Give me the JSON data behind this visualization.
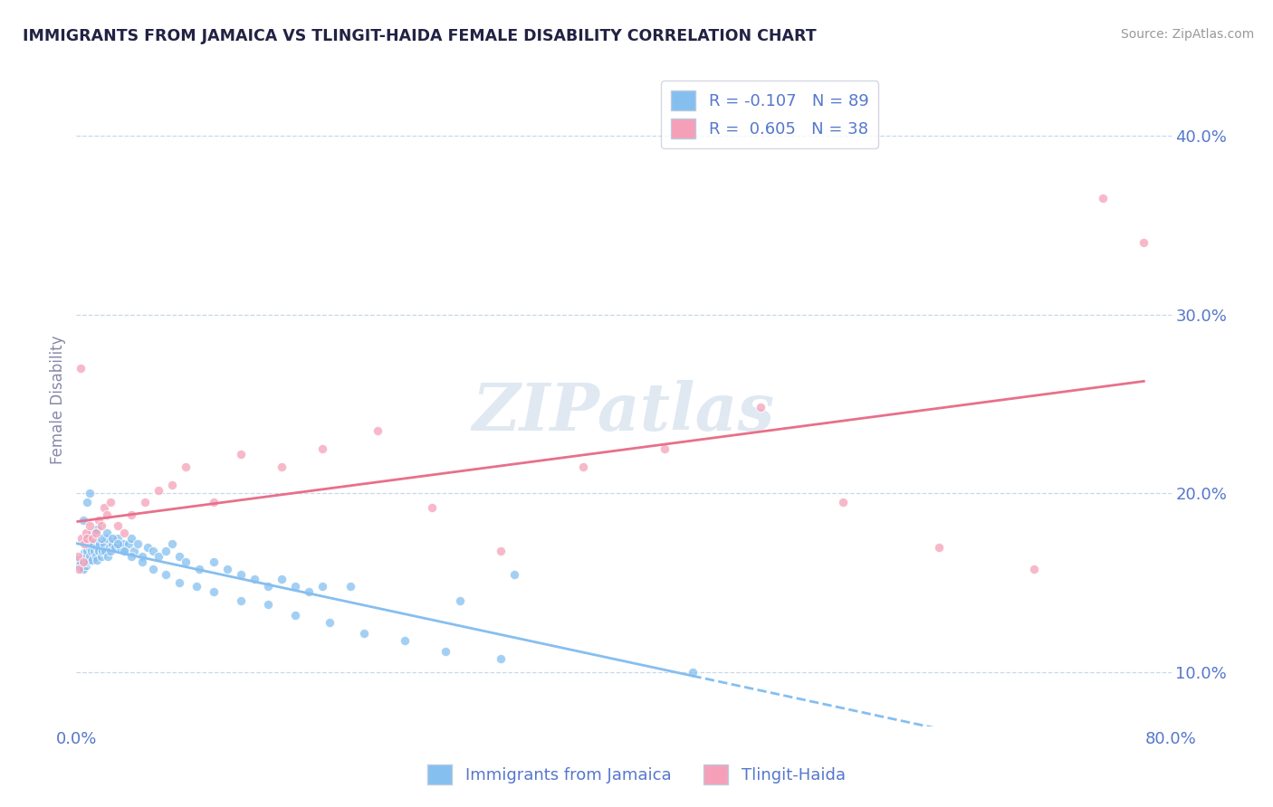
{
  "title": "IMMIGRANTS FROM JAMAICA VS TLINGIT-HAIDA FEMALE DISABILITY CORRELATION CHART",
  "source": "Source: ZipAtlas.com",
  "ylabel": "Female Disability",
  "legend_labels": [
    "Immigrants from Jamaica",
    "Tlingit-Haida"
  ],
  "r_values": [
    -0.107,
    0.605
  ],
  "n_values": [
    89,
    38
  ],
  "xlim": [
    0.0,
    0.8
  ],
  "ylim": [
    0.07,
    0.435
  ],
  "yticks": [
    0.1,
    0.2,
    0.3,
    0.4
  ],
  "xticks": [
    0.0,
    0.8
  ],
  "blue_scatter_color": "#85bff0",
  "pink_scatter_color": "#f5a0b8",
  "blue_line_color": "#85bff0",
  "pink_line_color": "#e8708a",
  "title_color": "#222244",
  "axis_label_color": "#5577cc",
  "ylabel_color": "#8888aa",
  "background_color": "#ffffff",
  "grid_color": "#c8d8e8",
  "watermark_color": "#c8d8e8",
  "blue_x": [
    0.001,
    0.002,
    0.003,
    0.004,
    0.005,
    0.005,
    0.006,
    0.006,
    0.007,
    0.007,
    0.008,
    0.008,
    0.009,
    0.01,
    0.01,
    0.011,
    0.012,
    0.012,
    0.013,
    0.014,
    0.015,
    0.015,
    0.016,
    0.017,
    0.018,
    0.019,
    0.02,
    0.021,
    0.022,
    0.023,
    0.024,
    0.025,
    0.026,
    0.028,
    0.03,
    0.032,
    0.034,
    0.036,
    0.038,
    0.04,
    0.042,
    0.045,
    0.048,
    0.052,
    0.056,
    0.06,
    0.065,
    0.07,
    0.075,
    0.08,
    0.09,
    0.1,
    0.11,
    0.12,
    0.13,
    0.14,
    0.15,
    0.16,
    0.17,
    0.18,
    0.005,
    0.008,
    0.01,
    0.012,
    0.015,
    0.018,
    0.022,
    0.026,
    0.03,
    0.035,
    0.04,
    0.048,
    0.056,
    0.065,
    0.075,
    0.088,
    0.1,
    0.12,
    0.14,
    0.16,
    0.185,
    0.21,
    0.24,
    0.27,
    0.31,
    0.2,
    0.28,
    0.32,
    0.45
  ],
  "blue_y": [
    0.163,
    0.16,
    0.162,
    0.158,
    0.165,
    0.158,
    0.162,
    0.167,
    0.16,
    0.165,
    0.162,
    0.168,
    0.163,
    0.165,
    0.17,
    0.168,
    0.163,
    0.172,
    0.168,
    0.165,
    0.17,
    0.163,
    0.168,
    0.172,
    0.165,
    0.168,
    0.172,
    0.168,
    0.175,
    0.165,
    0.17,
    0.168,
    0.172,
    0.17,
    0.175,
    0.17,
    0.172,
    0.168,
    0.172,
    0.175,
    0.168,
    0.172,
    0.165,
    0.17,
    0.168,
    0.165,
    0.168,
    0.172,
    0.165,
    0.162,
    0.158,
    0.162,
    0.158,
    0.155,
    0.152,
    0.148,
    0.152,
    0.148,
    0.145,
    0.148,
    0.185,
    0.195,
    0.2,
    0.178,
    0.18,
    0.175,
    0.178,
    0.175,
    0.172,
    0.168,
    0.165,
    0.162,
    0.158,
    0.155,
    0.15,
    0.148,
    0.145,
    0.14,
    0.138,
    0.132,
    0.128,
    0.122,
    0.118,
    0.112,
    0.108,
    0.148,
    0.14,
    0.155,
    0.1
  ],
  "pink_x": [
    0.001,
    0.002,
    0.003,
    0.004,
    0.005,
    0.006,
    0.007,
    0.008,
    0.01,
    0.012,
    0.014,
    0.016,
    0.018,
    0.02,
    0.022,
    0.025,
    0.03,
    0.035,
    0.04,
    0.05,
    0.06,
    0.07,
    0.08,
    0.1,
    0.12,
    0.15,
    0.18,
    0.22,
    0.26,
    0.31,
    0.37,
    0.43,
    0.5,
    0.56,
    0.63,
    0.7,
    0.75,
    0.78
  ],
  "pink_y": [
    0.165,
    0.158,
    0.27,
    0.175,
    0.162,
    0.172,
    0.178,
    0.175,
    0.182,
    0.175,
    0.178,
    0.185,
    0.182,
    0.192,
    0.188,
    0.195,
    0.182,
    0.178,
    0.188,
    0.195,
    0.202,
    0.205,
    0.215,
    0.195,
    0.222,
    0.215,
    0.225,
    0.235,
    0.192,
    0.168,
    0.215,
    0.225,
    0.248,
    0.195,
    0.17,
    0.158,
    0.365,
    0.34
  ]
}
